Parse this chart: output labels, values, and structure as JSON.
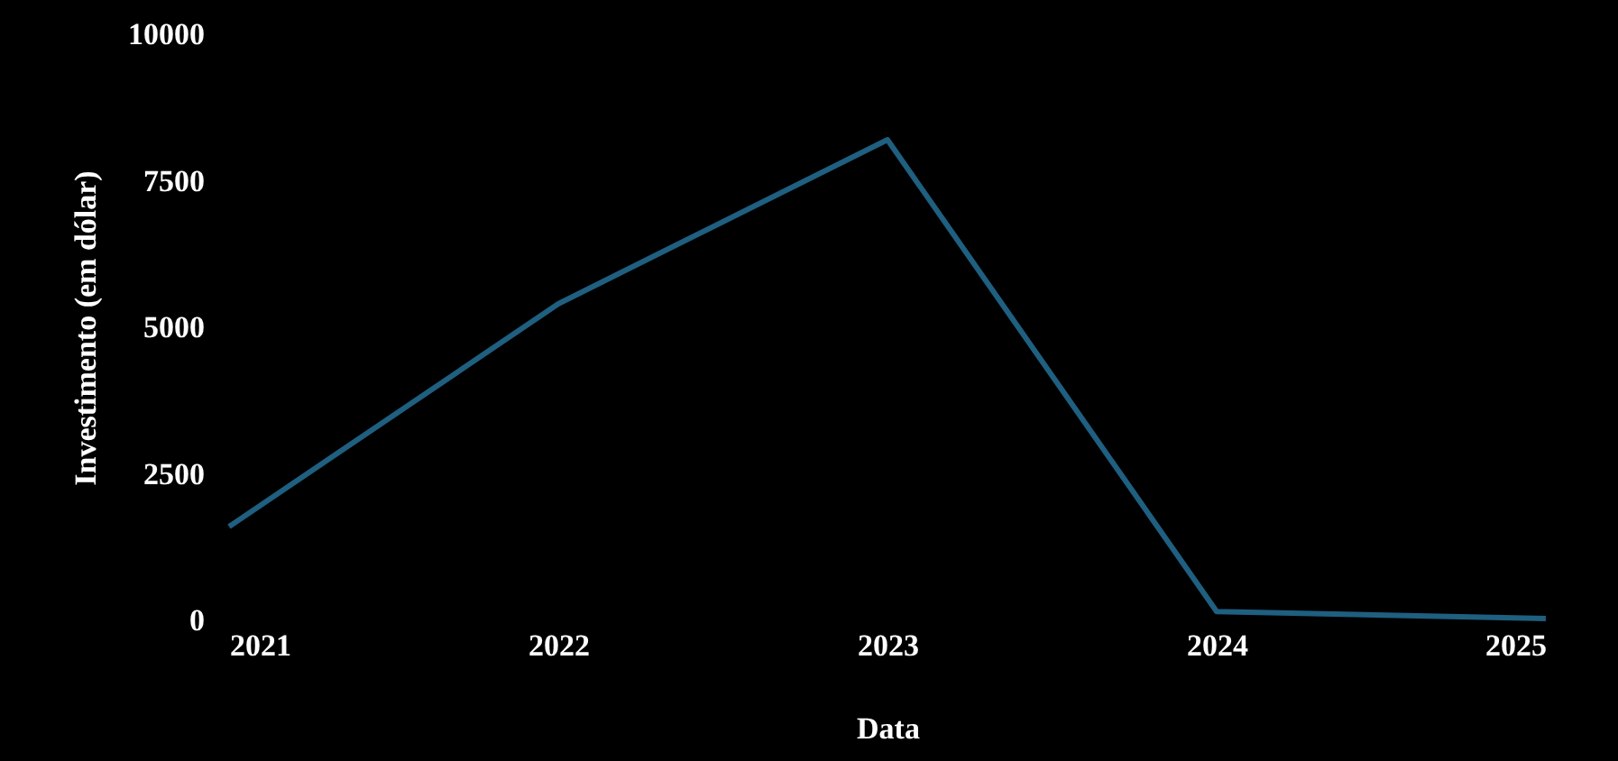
{
  "chart_data": {
    "type": "line",
    "xlabel": "Data",
    "ylabel": "Investimento (em dólar)",
    "x": [
      2021,
      2022,
      2023,
      2024,
      2025
    ],
    "series": [
      {
        "color": "#1f5f80",
        "values": [
          1600,
          5400,
          8200,
          150,
          30
        ]
      }
    ],
    "xlim": [
      2021,
      2025
    ],
    "ylim": [
      0,
      10000
    ],
    "xticks": [
      2021,
      2022,
      2023,
      2024,
      2025
    ],
    "yticks": [
      0,
      2500,
      5000,
      7500,
      10000
    ],
    "grid": false
  }
}
